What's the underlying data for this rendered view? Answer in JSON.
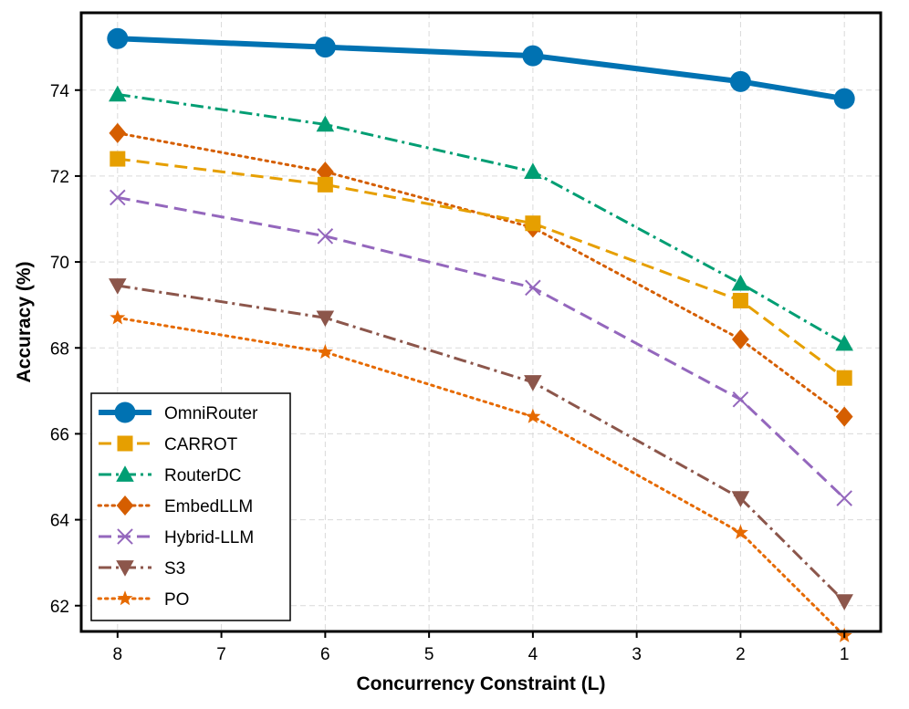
{
  "chart_data": {
    "type": "line",
    "title": "",
    "xlabel": "Concurrency Constraint (L)",
    "ylabel": "Accuracy (%)",
    "x_ticks": [
      "8",
      "7",
      "6",
      "5",
      "4",
      "3",
      "2",
      "1"
    ],
    "y_ticks": [
      "62",
      "64",
      "66",
      "68",
      "70",
      "72",
      "74"
    ],
    "xlim": [
      8.35,
      0.65
    ],
    "ylim": [
      61.4,
      75.8
    ],
    "x_reversed": true,
    "grid": true,
    "legend_position": "lower-left",
    "series": [
      {
        "name": "OmniRouter",
        "color": "#0072B2",
        "marker": "circle",
        "line_style": "solid",
        "emphasis": true,
        "x": [
          8,
          6,
          4,
          2,
          1
        ],
        "y": [
          75.2,
          75.0,
          74.8,
          74.2,
          73.8
        ]
      },
      {
        "name": "CARROT",
        "color": "#E69F00",
        "marker": "square",
        "line_style": "dashed",
        "x": [
          8,
          6,
          4,
          2,
          1
        ],
        "y": [
          72.4,
          71.8,
          70.9,
          69.1,
          67.3
        ]
      },
      {
        "name": "RouterDC",
        "color": "#009E73",
        "marker": "triangle-up",
        "line_style": "dashdot",
        "x": [
          8,
          6,
          4,
          2,
          1
        ],
        "y": [
          73.9,
          73.2,
          72.1,
          69.5,
          68.1
        ]
      },
      {
        "name": "EmbedLLM",
        "color": "#D55E00",
        "marker": "diamond",
        "line_style": "dotted",
        "x": [
          8,
          6,
          4,
          2,
          1
        ],
        "y": [
          73.0,
          72.1,
          70.8,
          68.2,
          66.4
        ]
      },
      {
        "name": "Hybrid-LLM",
        "color": "#9467BD",
        "marker": "x",
        "line_style": "dashed",
        "x": [
          8,
          6,
          4,
          2,
          1
        ],
        "y": [
          71.5,
          70.6,
          69.4,
          66.8,
          64.5
        ]
      },
      {
        "name": "S3",
        "color": "#8C564B",
        "marker": "triangle-down",
        "line_style": "dashdot",
        "x": [
          8,
          6,
          4,
          2,
          1
        ],
        "y": [
          69.45,
          68.7,
          67.2,
          64.5,
          62.1
        ]
      },
      {
        "name": "PO",
        "color": "#E66A00",
        "marker": "star",
        "line_style": "dotted",
        "x": [
          8,
          6,
          4,
          2,
          1
        ],
        "y": [
          68.7,
          67.9,
          66.4,
          63.7,
          61.3
        ]
      }
    ]
  }
}
